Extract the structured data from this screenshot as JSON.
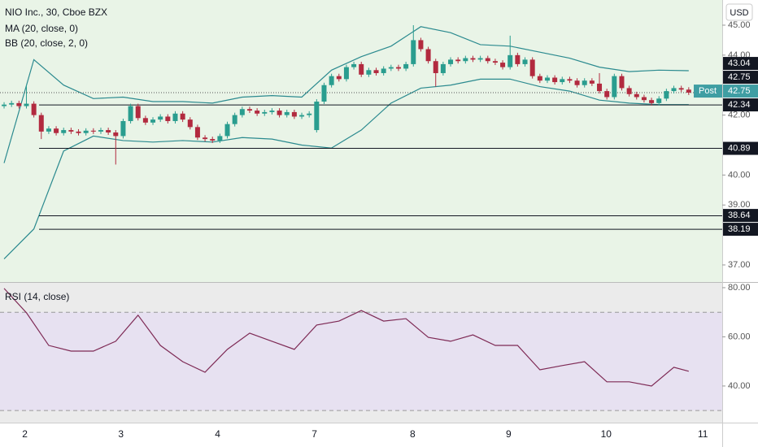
{
  "chart_data": [
    {
      "type": "candlestick",
      "title": "NIO Inc., 30, Cboe BZX",
      "indicators": [
        "MA (20, close, 0)",
        "BB (20, close, 2, 0)"
      ],
      "currency": "USD",
      "ylim": [
        36.43,
        45.84
      ],
      "yticks": [
        {
          "value": 37,
          "label": "37.00"
        },
        {
          "value": 39,
          "label": "39.00"
        },
        {
          "value": 40,
          "label": "40.00"
        },
        {
          "value": 42,
          "label": "42.00"
        },
        {
          "value": 44,
          "label": "44.00"
        },
        {
          "value": 45,
          "label": "45.00"
        }
      ],
      "xlim": [
        -0.55,
        96.5
      ],
      "xticks": [
        {
          "value": 2.8,
          "label": "2"
        },
        {
          "value": 15.7,
          "label": "3"
        },
        {
          "value": 28.7,
          "label": "4"
        },
        {
          "value": 41.7,
          "label": "7"
        },
        {
          "value": 54.9,
          "label": "8"
        },
        {
          "value": 67.8,
          "label": "9"
        },
        {
          "value": 80.9,
          "label": "10"
        },
        {
          "value": 93.9,
          "label": "11"
        }
      ],
      "up_color": "#2a9d8f",
      "down_color": "#b22a3f",
      "background": "#e9f4e7",
      "open": [
        42.3,
        42.35,
        42.4,
        42.3,
        42.38,
        42.0,
        41.45,
        41.55,
        41.4,
        41.5,
        41.45,
        41.4,
        41.48,
        41.45,
        41.5,
        41.42,
        41.3,
        41.8,
        42.3,
        41.9,
        41.75,
        41.85,
        41.95,
        41.8,
        42.05,
        41.85,
        41.6,
        41.25,
        41.2,
        41.15,
        41.3,
        41.7,
        42.0,
        42.2,
        42.15,
        42.05,
        42.1,
        42.15,
        42.0,
        42.1,
        41.95,
        42.0,
        41.5,
        42.45,
        43.0,
        43.3,
        43.2,
        43.6,
        43.7,
        43.35,
        43.5,
        43.4,
        43.55,
        43.6,
        43.55,
        43.7,
        44.5,
        44.2,
        43.8,
        43.4,
        43.7,
        43.85,
        43.8,
        43.9,
        43.85,
        43.9,
        43.8,
        43.75,
        43.6,
        44.0,
        43.7,
        43.85,
        43.3,
        43.15,
        43.25,
        43.1,
        43.2,
        43.15,
        43.0,
        43.15,
        43.05,
        42.8,
        42.6,
        43.3,
        42.9,
        42.7,
        42.6,
        42.5,
        42.4,
        42.55,
        42.8,
        42.9,
        42.85
      ],
      "high": [
        42.43,
        42.48,
        42.48,
        43.0,
        42.46,
        42.08,
        41.63,
        41.63,
        41.58,
        41.58,
        41.53,
        41.56,
        41.56,
        41.58,
        41.58,
        41.5,
        41.88,
        42.38,
        42.38,
        41.98,
        41.93,
        42.03,
        42.03,
        42.13,
        42.13,
        41.93,
        41.68,
        41.33,
        41.28,
        41.38,
        41.78,
        42.08,
        42.28,
        42.28,
        42.23,
        42.18,
        42.23,
        42.23,
        42.18,
        42.18,
        42.08,
        42.13,
        42.53,
        43.08,
        43.38,
        43.38,
        43.68,
        43.78,
        43.78,
        43.58,
        43.58,
        43.63,
        43.68,
        43.68,
        43.78,
        45.0,
        44.58,
        44.28,
        43.88,
        43.78,
        43.93,
        43.93,
        43.98,
        43.98,
        43.98,
        43.98,
        43.88,
        43.83,
        44.65,
        44.08,
        43.93,
        43.93,
        43.38,
        43.33,
        43.33,
        43.28,
        43.28,
        43.23,
        43.23,
        43.23,
        43.4,
        42.88,
        43.38,
        43.38,
        42.98,
        42.78,
        42.68,
        42.58,
        42.63,
        42.88,
        42.98,
        42.98,
        42.93
      ],
      "low": [
        42.22,
        42.27,
        42.22,
        42.22,
        41.92,
        41.2,
        41.37,
        41.32,
        41.32,
        41.37,
        41.32,
        41.32,
        41.37,
        41.37,
        41.34,
        40.35,
        41.22,
        41.72,
        41.82,
        41.67,
        41.67,
        41.77,
        41.72,
        41.72,
        41.77,
        41.52,
        41.17,
        41.12,
        41.07,
        41.07,
        41.22,
        41.62,
        41.92,
        42.07,
        41.97,
        41.97,
        42.02,
        41.92,
        41.92,
        41.87,
        41.87,
        41.92,
        41.42,
        42.37,
        42.92,
        43.12,
        43.12,
        43.52,
        43.27,
        43.27,
        43.32,
        43.32,
        43.47,
        43.47,
        43.47,
        43.62,
        44.12,
        43.72,
        42.95,
        43.32,
        43.62,
        43.72,
        43.72,
        43.77,
        43.77,
        43.72,
        43.67,
        43.52,
        43.52,
        43.62,
        43.62,
        43.22,
        43.07,
        43.07,
        43.02,
        43.02,
        43.07,
        42.92,
        42.92,
        42.97,
        42.72,
        42.52,
        42.52,
        42.82,
        42.62,
        42.52,
        42.42,
        42.32,
        42.32,
        42.47,
        42.72,
        42.77,
        42.67
      ],
      "close": [
        42.35,
        42.4,
        42.3,
        42.38,
        42.0,
        41.45,
        41.55,
        41.4,
        41.5,
        41.45,
        41.4,
        41.48,
        41.45,
        41.5,
        41.42,
        41.3,
        41.8,
        42.3,
        41.9,
        41.75,
        41.85,
        41.95,
        41.8,
        42.05,
        41.85,
        41.6,
        41.25,
        41.2,
        41.15,
        41.3,
        41.7,
        42.0,
        42.2,
        42.15,
        42.05,
        42.1,
        42.15,
        42.0,
        42.1,
        41.95,
        42.0,
        42.05,
        42.45,
        43.0,
        43.3,
        43.2,
        43.6,
        43.7,
        43.35,
        43.5,
        43.4,
        43.55,
        43.6,
        43.55,
        43.7,
        44.5,
        44.2,
        43.8,
        43.4,
        43.7,
        43.85,
        43.8,
        43.9,
        43.85,
        43.9,
        43.8,
        43.75,
        43.6,
        44.0,
        43.7,
        43.85,
        43.3,
        43.15,
        43.25,
        43.1,
        43.2,
        43.15,
        43.0,
        43.15,
        43.05,
        42.8,
        42.6,
        43.3,
        42.9,
        42.7,
        42.6,
        42.5,
        42.4,
        42.55,
        42.8,
        42.9,
        42.85,
        42.75
      ],
      "lines": [
        {
          "color": "#2b8a8f",
          "x": [
            0,
            4,
            8,
            12,
            16,
            20,
            24,
            28,
            32,
            36,
            40,
            44,
            48,
            52,
            56,
            60,
            64,
            68,
            72,
            76,
            80,
            84,
            88,
            92
          ],
          "values": [
            40.4,
            43.85,
            43.0,
            42.55,
            42.6,
            42.45,
            42.45,
            42.4,
            42.6,
            42.65,
            42.6,
            43.5,
            43.95,
            44.3,
            44.95,
            44.75,
            44.35,
            44.3,
            44.1,
            43.9,
            43.6,
            43.45,
            43.5,
            43.48
          ]
        },
        {
          "color": "#2b8a8f",
          "x": [
            0,
            4,
            8,
            12,
            16,
            20,
            24,
            28,
            32,
            36,
            40,
            44,
            48,
            52,
            56,
            60,
            64,
            68,
            72,
            76,
            80,
            84,
            88,
            92
          ],
          "values": [
            37.2,
            38.2,
            40.8,
            41.3,
            41.15,
            41.1,
            41.15,
            41.1,
            41.25,
            41.2,
            41.0,
            40.9,
            41.5,
            42.4,
            42.9,
            43.0,
            43.2,
            43.2,
            42.95,
            42.8,
            42.5,
            42.4,
            42.35,
            42.35
          ]
        }
      ],
      "levels": [
        42.34,
        40.89,
        38.64,
        38.19
      ],
      "price_labels": [
        {
          "value": 43.04,
          "color": "#131722"
        },
        {
          "value": 42.75,
          "color": "#3f9ea3",
          "tag": "Post"
        },
        {
          "value": 42.75,
          "color": "#131722",
          "dotted": true
        }
      ]
    },
    {
      "type": "line",
      "title": "RSI (14, close)",
      "ylim": [
        25.1,
        82.3
      ],
      "yticks": [
        {
          "value": 40,
          "label": "40.00"
        },
        {
          "value": 60,
          "label": "60.00"
        },
        {
          "value": 80,
          "label": "80.00"
        }
      ],
      "band": [
        30,
        70
      ],
      "color": "#7e2a55",
      "x": [
        0,
        3,
        6,
        9,
        12,
        15,
        18,
        21,
        24,
        27,
        30,
        33,
        36,
        39,
        42,
        45,
        48,
        51,
        54,
        57,
        60,
        63,
        66,
        69,
        72,
        75,
        78,
        81,
        84,
        87,
        90,
        92
      ],
      "values": [
        79.7,
        69.8,
        56.5,
        54.2,
        54.2,
        58.2,
        68.8,
        56.5,
        49.9,
        45.6,
        54.9,
        61.5,
        58.2,
        54.9,
        64.8,
        66.4,
        70.7,
        66.4,
        67.4,
        59.8,
        58.2,
        60.8,
        56.5,
        56.5,
        46.6,
        48.3,
        49.9,
        41.7,
        41.7,
        40.0,
        47.6,
        46.0
      ]
    }
  ]
}
